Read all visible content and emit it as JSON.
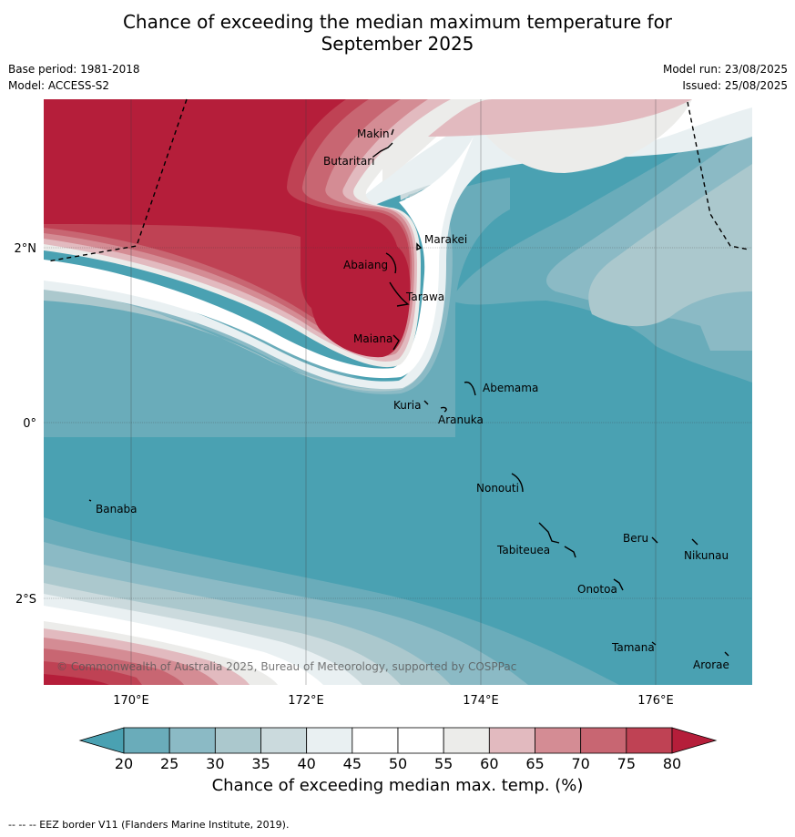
{
  "title_line1": "Chance of exceeding the median maximum temperature for",
  "title_line2": "September 2025",
  "base_period": "Base period: 1981-2018",
  "model": "Model: ACCESS-S2",
  "model_run": "Model run: 23/08/2025",
  "issued": "Issued: 25/08/2025",
  "copyright": "© Commonwealth of Australia 2025, Bureau of Meteorology, supported by COSPPac",
  "footnote": "--  --  -- EEZ border V11 (Flanders Marine Institute, 2019).",
  "map": {
    "lon_ticks": [
      "170°E",
      "172°E",
      "174°E",
      "176°E"
    ],
    "lat_ticks": [
      "2°N",
      "0°",
      "2°S"
    ],
    "places": [
      {
        "name": "Makin"
      },
      {
        "name": "Butaritari"
      },
      {
        "name": "Marakei"
      },
      {
        "name": "Abaiang"
      },
      {
        "name": "Tarawa"
      },
      {
        "name": "Maiana"
      },
      {
        "name": "Abemama"
      },
      {
        "name": "Kuria"
      },
      {
        "name": "Aranuka"
      },
      {
        "name": "Nonouti"
      },
      {
        "name": "Banaba"
      },
      {
        "name": "Beru"
      },
      {
        "name": "Nikunau"
      },
      {
        "name": "Tabiteuea"
      },
      {
        "name": "Onotoa"
      },
      {
        "name": "Tamana"
      },
      {
        "name": "Arorae"
      }
    ]
  },
  "colorbar": {
    "label": "Chance of exceeding median max. temp. (%)",
    "ticks": [
      "20",
      "25",
      "30",
      "35",
      "40",
      "45",
      "50",
      "55",
      "60",
      "65",
      "70",
      "75",
      "80"
    ],
    "colors": {
      "below_20": "#4aa1b2",
      "20_25": "#6aacba",
      "25_30": "#8bbac5",
      "30_35": "#abc8cd",
      "35_40": "#cbdadd",
      "40_45": "#e9f0f2",
      "45_50": "#ffffff",
      "50_55": "#ffffff",
      "55_60": "#ececea",
      "60_65": "#e2babf",
      "65_70": "#d48c94",
      "70_75": "#c86672",
      "75_80": "#bf4254",
      "above_80": "#b51e3a"
    }
  }
}
